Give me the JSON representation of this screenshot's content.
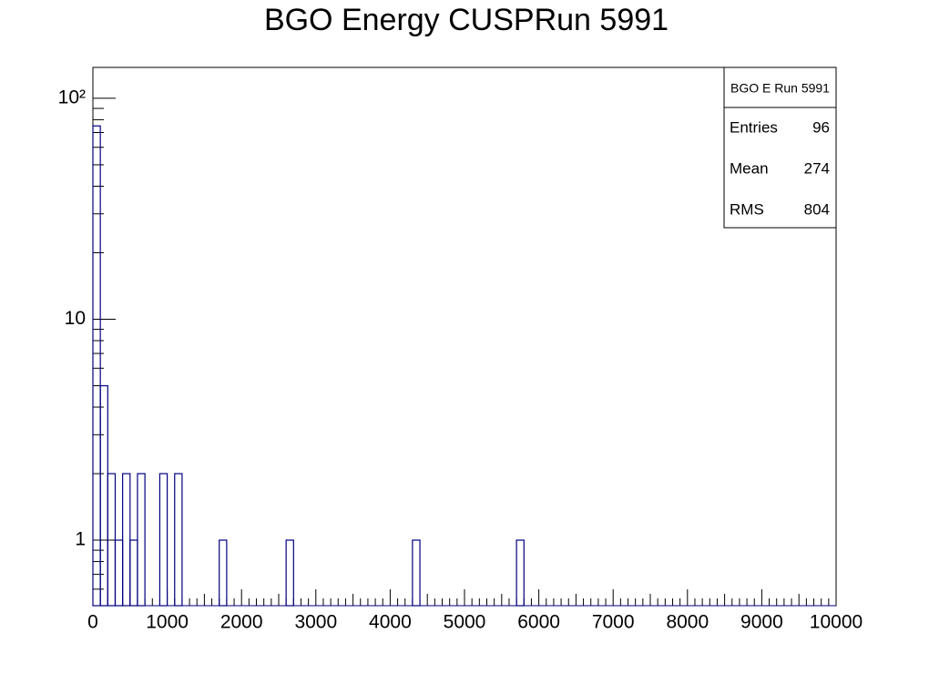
{
  "chart_data": {
    "type": "histogram",
    "title": "BGO Energy CUSPRun 5991",
    "color": "#000080",
    "bins": [
      0,
      100,
      200,
      300,
      400,
      500,
      600,
      700,
      800,
      900,
      1000,
      1100,
      1200,
      1300,
      1400,
      1500,
      1600,
      1700,
      1800,
      1900,
      2000,
      2100,
      2200,
      2300,
      2400,
      2500,
      2600,
      2700,
      2800,
      2900,
      3000,
      3100,
      3200,
      3300,
      3400,
      3500,
      3600,
      3700,
      3800,
      3900,
      4000,
      4100,
      4200,
      4300,
      4400,
      4500,
      4600,
      4700,
      4800,
      4900,
      5000,
      5100,
      5200,
      5300,
      5400,
      5500,
      5600,
      5700,
      5800,
      5900,
      6000,
      6100,
      6200,
      6300,
      6400,
      6500,
      6600,
      6700,
      6800,
      6900,
      7000,
      7100,
      7200,
      7300,
      7400,
      7500,
      7600,
      7700,
      7800,
      7900,
      8000,
      8100,
      8200,
      8300,
      8400,
      8500,
      8600,
      8700,
      8800,
      8900,
      9000,
      9100,
      9200,
      9300,
      9400,
      9500,
      9600,
      9700,
      9800,
      9900,
      10000
    ],
    "values": [
      75,
      5,
      2,
      1,
      2,
      1,
      2,
      0,
      0,
      2,
      0,
      2,
      0,
      0,
      0,
      0,
      0,
      1,
      0,
      0,
      0,
      0,
      0,
      0,
      0,
      0,
      1,
      0,
      0,
      0,
      0,
      0,
      0,
      0,
      0,
      0,
      0,
      0,
      0,
      0,
      0,
      0,
      0,
      1,
      0,
      0,
      0,
      0,
      0,
      0,
      0,
      0,
      0,
      0,
      0,
      0,
      0,
      1,
      0,
      0,
      0,
      0,
      0,
      0,
      0,
      0,
      0,
      0,
      0,
      0,
      0,
      0,
      0,
      0,
      0,
      0,
      0,
      0,
      0,
      0,
      0,
      0,
      0,
      0,
      0,
      0,
      0,
      0,
      0,
      0,
      0,
      0,
      0,
      0,
      0,
      0,
      0,
      0,
      0,
      0
    ],
    "xlim": [
      0,
      10000
    ],
    "xticks": [
      0,
      1000,
      2000,
      3000,
      4000,
      5000,
      6000,
      7000,
      8000,
      9000,
      10000
    ],
    "ylim": [
      0.505,
      138
    ],
    "yticks": [
      1,
      10,
      {
        "value": 100,
        "label": "10²"
      }
    ],
    "log_y": true,
    "stats": {
      "title": "BGO E Run 5991",
      "rows": [
        [
          "Entries",
          96
        ],
        [
          "Mean",
          274
        ],
        [
          "RMS",
          804
        ]
      ]
    }
  }
}
